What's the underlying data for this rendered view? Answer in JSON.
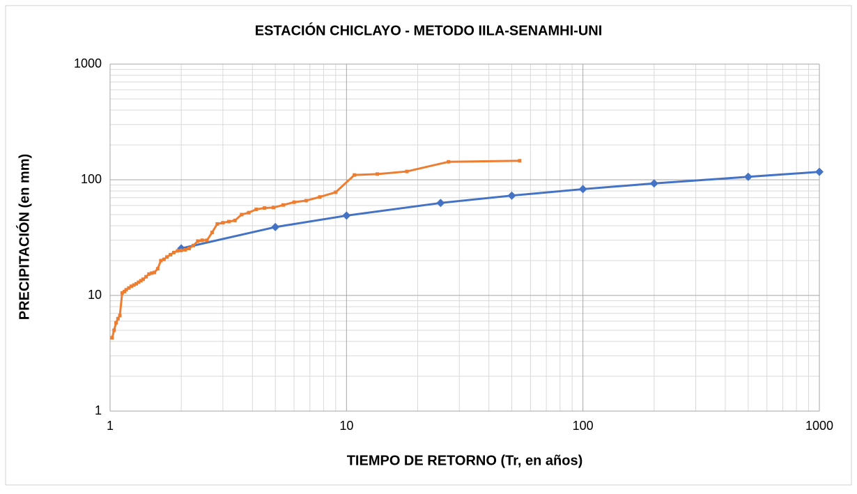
{
  "chart_data": {
    "type": "line",
    "title": "ESTACIÓN CHICLAYO - METODO IILA-SENAMHI-UNI",
    "xlabel": "TIEMPO DE RETORNO (Tr, en años)",
    "ylabel": "PRECIPITACIÓN (en mm)",
    "xscale": "log",
    "yscale": "log",
    "xlim": [
      1,
      1000
    ],
    "ylim": [
      1,
      1000
    ],
    "xticks": [
      1,
      10,
      100,
      1000
    ],
    "yticks": [
      1,
      10,
      100,
      1000
    ],
    "grid": true,
    "minor_grid": true,
    "series": [
      {
        "color": "#4472c4",
        "marker": "diamond",
        "x": [
          2,
          5,
          10,
          25,
          50,
          100,
          200,
          500,
          1000
        ],
        "values": [
          25.5,
          39,
          49,
          63,
          73,
          83,
          93,
          106,
          117
        ]
      },
      {
        "color": "#ed7d31",
        "marker": "square",
        "x": [
          1.02,
          1.04,
          1.06,
          1.08,
          1.1,
          1.125,
          1.15,
          1.17,
          1.2,
          1.23,
          1.26,
          1.29,
          1.32,
          1.35,
          1.38,
          1.42,
          1.46,
          1.5,
          1.54,
          1.59,
          1.64,
          1.69,
          1.74,
          1.8,
          1.86,
          1.93,
          2,
          2.08,
          2.16,
          2.25,
          2.35,
          2.45,
          2.57,
          2.7,
          2.84,
          3,
          3.18,
          3.375,
          3.6,
          3.86,
          4.15,
          4.5,
          4.91,
          5.4,
          6,
          6.75,
          7.71,
          9,
          10.8,
          13.5,
          18,
          27,
          54
        ],
        "values": [
          4.3,
          5.0,
          5.8,
          6.3,
          6.7,
          10.5,
          10.8,
          11.2,
          11.6,
          12.0,
          12.3,
          12.6,
          13.0,
          13.4,
          13.8,
          14.5,
          15.3,
          15.6,
          15.8,
          17,
          20,
          20.5,
          21.5,
          22.5,
          23.5,
          24.3,
          24.5,
          24.8,
          25.5,
          27,
          29.5,
          30,
          30,
          35,
          41.5,
          42.5,
          43.5,
          44.5,
          50,
          52,
          55.5,
          57,
          57.5,
          60.5,
          64,
          66,
          71,
          78,
          110,
          112,
          118,
          143,
          146
        ]
      }
    ]
  }
}
